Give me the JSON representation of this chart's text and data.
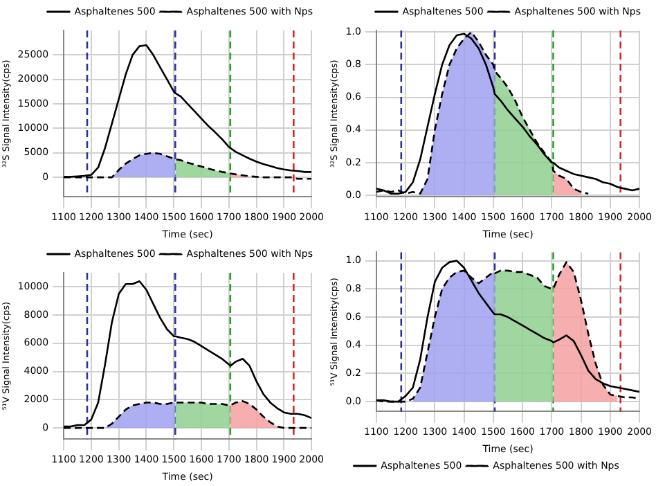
{
  "chart_data": [
    {
      "type": "line",
      "xlabel": "Time (sec)",
      "ylabel": "³²S Signal Intensity(cps)",
      "xlim": [
        1100,
        2000
      ],
      "xticks": [
        1100,
        1200,
        1300,
        1400,
        1500,
        1600,
        1700,
        1800,
        1900,
        2000
      ],
      "ylim": [
        -4000,
        30000
      ],
      "yticks": [
        0,
        5000,
        10000,
        15000,
        20000,
        25000
      ],
      "grid": true,
      "legend": "top right",
      "marker": "none",
      "x": [
        1100,
        1125,
        1150,
        1175,
        1200,
        1225,
        1250,
        1275,
        1300,
        1325,
        1350,
        1375,
        1400,
        1425,
        1450,
        1475,
        1500,
        1505,
        1525,
        1550,
        1575,
        1600,
        1625,
        1650,
        1675,
        1700,
        1705,
        1725,
        1750,
        1775,
        1800,
        1825,
        1850,
        1875,
        1900,
        1925,
        1950,
        1975,
        2000
      ],
      "series": [
        {
          "type": "area",
          "color": "#a0a0f0",
          "values": [
            null,
            null,
            null,
            null,
            null,
            null,
            null,
            0,
            1500,
            2800,
            3700,
            4500,
            4800,
            5000,
            4800,
            4300,
            3800,
            3700,
            null,
            null,
            null,
            null,
            null,
            null,
            null,
            null,
            null,
            null,
            null,
            null,
            null,
            null,
            null,
            null,
            null,
            null,
            null,
            null,
            null
          ]
        },
        {
          "type": "area",
          "color": "#8fd08f",
          "values": [
            null,
            null,
            null,
            null,
            null,
            null,
            null,
            null,
            null,
            null,
            null,
            null,
            null,
            null,
            null,
            null,
            null,
            3700,
            3500,
            3000,
            2600,
            2200,
            1800,
            1400,
            1100,
            900,
            800,
            null,
            null,
            null,
            null,
            null,
            null,
            null,
            null,
            null,
            null,
            null,
            null
          ]
        },
        {
          "type": "area",
          "color": "#f4a0a0",
          "values": [
            null,
            null,
            null,
            null,
            null,
            null,
            null,
            null,
            null,
            null,
            null,
            null,
            null,
            null,
            null,
            null,
            null,
            null,
            null,
            null,
            null,
            null,
            null,
            null,
            null,
            null,
            800,
            600,
            400,
            200,
            100,
            null,
            null,
            null,
            null,
            null,
            null,
            null,
            null
          ]
        },
        {
          "name": "Asphaltenes 500",
          "color": "#000000",
          "line_style": "solid",
          "values": [
            100,
            100,
            200,
            300,
            500,
            2000,
            6000,
            11000,
            16000,
            21000,
            25000,
            26800,
            27000,
            25000,
            22500,
            20000,
            17500,
            17200,
            16500,
            15000,
            13500,
            12000,
            10500,
            9200,
            7800,
            6200,
            6000,
            5200,
            4500,
            3800,
            3200,
            2700,
            2300,
            1900,
            1600,
            1400,
            1300,
            1100,
            1100
          ]
        },
        {
          "name": "Asphaltenes 500 with Nps",
          "color": "#000000",
          "line_style": "dashed",
          "values": [
            0,
            0,
            0,
            0,
            0,
            0,
            0,
            0,
            1500,
            2800,
            3700,
            4500,
            4800,
            5000,
            4800,
            4300,
            3800,
            3700,
            3500,
            3000,
            2600,
            2200,
            1800,
            1400,
            1100,
            900,
            800,
            600,
            400,
            200,
            100,
            0,
            0,
            0,
            0,
            0,
            -300,
            -300,
            -300
          ]
        }
      ],
      "ref_lines": [
        {
          "axis": "x",
          "value": 1185,
          "color": "#3030a0",
          "line_style": "dashed"
        },
        {
          "axis": "x",
          "value": 1505,
          "color": "#3030a0",
          "line_style": "dashed"
        },
        {
          "axis": "x",
          "value": 1705,
          "color": "#2ca02c",
          "line_style": "dashed"
        },
        {
          "axis": "x",
          "value": 1935,
          "color": "#d62728",
          "line_style": "dashed"
        }
      ]
    },
    {
      "type": "line",
      "xlabel": "Time (sec)",
      "ylabel": "³²S Signal Intensity(cps)",
      "xlim": [
        1100,
        2000
      ],
      "xticks": [
        1100,
        1200,
        1300,
        1400,
        1500,
        1600,
        1700,
        1800,
        1900,
        2000
      ],
      "ylim": [
        -0.01,
        1.01
      ],
      "yticks": [
        {
          "value": 0,
          "label": "0.0"
        },
        {
          "value": 0.2,
          "label": "0.2"
        },
        {
          "value": 0.4,
          "label": "0.4"
        },
        {
          "value": 0.6,
          "label": "0.6"
        },
        {
          "value": 0.8,
          "label": "0.8"
        },
        {
          "value": 1,
          "label": "1.0"
        }
      ],
      "grid": true,
      "legend": "top right",
      "marker": "none",
      "x": [
        1100,
        1125,
        1150,
        1175,
        1200,
        1225,
        1250,
        1275,
        1300,
        1325,
        1350,
        1375,
        1400,
        1425,
        1450,
        1475,
        1500,
        1505,
        1525,
        1550,
        1575,
        1600,
        1625,
        1650,
        1675,
        1700,
        1705,
        1725,
        1750,
        1775,
        1800,
        1825,
        1850,
        1875,
        1900,
        1925,
        1950,
        1975,
        2000
      ],
      "series": [
        {
          "type": "area",
          "color": "#a0a0f0",
          "values": [
            null,
            null,
            null,
            null,
            null,
            null,
            0.01,
            0.1,
            0.4,
            0.62,
            0.8,
            0.9,
            0.96,
            1.0,
            0.94,
            0.86,
            0.8,
            0.76,
            null,
            null,
            null,
            null,
            null,
            null,
            null,
            null,
            null,
            null,
            null,
            null,
            null,
            null,
            null,
            null,
            null,
            null,
            null,
            null,
            null
          ]
        },
        {
          "type": "area",
          "color": "#8fd08f",
          "values": [
            null,
            null,
            null,
            null,
            null,
            null,
            null,
            null,
            null,
            null,
            null,
            null,
            null,
            null,
            null,
            null,
            null,
            0.76,
            0.72,
            0.66,
            0.58,
            0.48,
            0.4,
            0.32,
            0.26,
            0.2,
            0.15,
            null,
            null,
            null,
            null,
            null,
            null,
            null,
            null,
            null,
            null,
            null,
            null
          ]
        },
        {
          "type": "area",
          "color": "#f4a0a0",
          "values": [
            null,
            null,
            null,
            null,
            null,
            null,
            null,
            null,
            null,
            null,
            null,
            null,
            null,
            null,
            null,
            null,
            null,
            null,
            null,
            null,
            null,
            null,
            null,
            null,
            null,
            null,
            0.15,
            0.12,
            0.1,
            0.04,
            0.02,
            null,
            null,
            null,
            null,
            null,
            null,
            null,
            null
          ]
        },
        {
          "name": "Asphaltenes 500",
          "color": "#000000",
          "line_style": "solid",
          "values": [
            0.02,
            0.03,
            0.01,
            0.01,
            0.02,
            0.08,
            0.22,
            0.42,
            0.62,
            0.8,
            0.92,
            0.98,
            0.99,
            0.96,
            0.9,
            0.8,
            0.66,
            0.62,
            0.58,
            0.52,
            0.47,
            0.42,
            0.36,
            0.31,
            0.25,
            0.2,
            0.2,
            0.17,
            0.15,
            0.13,
            0.12,
            0.11,
            0.1,
            0.08,
            0.07,
            0.05,
            0.04,
            0.03,
            0.04
          ]
        },
        {
          "name": "Asphaltenes 500 with Nps",
          "color": "#000000",
          "line_style": "dashed",
          "values": [
            0.04,
            0.03,
            0.02,
            0.03,
            0.01,
            0.02,
            0.01,
            0.1,
            0.4,
            0.62,
            0.8,
            0.9,
            0.96,
            1.0,
            0.94,
            0.86,
            0.8,
            0.76,
            0.72,
            0.66,
            0.58,
            0.48,
            0.4,
            0.32,
            0.26,
            0.2,
            0.15,
            0.12,
            0.1,
            0.04,
            0.02,
            0.01,
            null,
            null,
            null,
            null,
            null,
            null,
            null
          ]
        }
      ],
      "ref_lines": [
        {
          "axis": "x",
          "value": 1185,
          "color": "#3030a0",
          "line_style": "dashed"
        },
        {
          "axis": "x",
          "value": 1505,
          "color": "#3030a0",
          "line_style": "dashed"
        },
        {
          "axis": "x",
          "value": 1705,
          "color": "#2ca02c",
          "line_style": "dashed"
        },
        {
          "axis": "x",
          "value": 1935,
          "color": "#d62728",
          "line_style": "dashed"
        }
      ]
    },
    {
      "type": "line",
      "xlabel": "Time (sec)",
      "ylabel": "⁵¹V Signal Intensity(cps)",
      "xlim": [
        1100,
        2000
      ],
      "xticks": [
        1100,
        1200,
        1300,
        1400,
        1500,
        1600,
        1700,
        1800,
        1900,
        2000
      ],
      "ylim": [
        -800,
        11000
      ],
      "yticks": [
        0,
        2000,
        4000,
        6000,
        8000,
        10000
      ],
      "grid": true,
      "legend": "top right",
      "marker": "none",
      "x": [
        1100,
        1125,
        1150,
        1175,
        1200,
        1225,
        1250,
        1275,
        1300,
        1325,
        1350,
        1375,
        1400,
        1425,
        1450,
        1475,
        1500,
        1505,
        1525,
        1550,
        1575,
        1600,
        1625,
        1650,
        1675,
        1700,
        1705,
        1725,
        1750,
        1775,
        1800,
        1825,
        1850,
        1875,
        1900,
        1925,
        1950,
        1975,
        2000
      ],
      "series": [
        {
          "type": "area",
          "color": "#a0a0f0",
          "values": [
            null,
            null,
            null,
            null,
            null,
            null,
            0,
            300,
            800,
            1300,
            1600,
            1700,
            1800,
            1800,
            1700,
            1700,
            1800,
            1800,
            null,
            null,
            null,
            null,
            null,
            null,
            null,
            null,
            null,
            null,
            null,
            null,
            null,
            null,
            null,
            null,
            null,
            null,
            null,
            null,
            null
          ]
        },
        {
          "type": "area",
          "color": "#8fd08f",
          "values": [
            null,
            null,
            null,
            null,
            null,
            null,
            null,
            null,
            null,
            null,
            null,
            null,
            null,
            null,
            null,
            null,
            null,
            1800,
            1800,
            1800,
            1800,
            1800,
            1700,
            1700,
            1700,
            1600,
            1600,
            null,
            null,
            null,
            null,
            null,
            null,
            null,
            null,
            null,
            null,
            null,
            null
          ]
        },
        {
          "type": "area",
          "color": "#f4a0a0",
          "values": [
            null,
            null,
            null,
            null,
            null,
            null,
            null,
            null,
            null,
            null,
            null,
            null,
            null,
            null,
            null,
            null,
            null,
            null,
            null,
            null,
            null,
            null,
            null,
            null,
            null,
            null,
            1600,
            1800,
            1900,
            1700,
            1300,
            800,
            400,
            100,
            null,
            null,
            null,
            null,
            null
          ]
        },
        {
          "name": "Asphaltenes 500",
          "color": "#000000",
          "line_style": "solid",
          "values": [
            100,
            100,
            200,
            200,
            600,
            1800,
            4500,
            7500,
            9500,
            10200,
            10200,
            10400,
            9800,
            8800,
            7800,
            7000,
            6500,
            6500,
            6400,
            6300,
            6100,
            5800,
            5500,
            5200,
            4900,
            4500,
            4400,
            4700,
            4900,
            4400,
            3300,
            2400,
            1800,
            1400,
            1100,
            1000,
            1000,
            900,
            700
          ]
        },
        {
          "name": "Asphaltenes 500 with Nps",
          "color": "#000000",
          "line_style": "dashed",
          "values": [
            0,
            0,
            0,
            0,
            0,
            0,
            0,
            300,
            800,
            1300,
            1600,
            1700,
            1800,
            1800,
            1700,
            1700,
            1800,
            1800,
            1800,
            1800,
            1800,
            1800,
            1700,
            1700,
            1700,
            1600,
            1600,
            1800,
            1900,
            1700,
            1300,
            800,
            400,
            100,
            0,
            0,
            0,
            0,
            0
          ]
        }
      ],
      "ref_lines": [
        {
          "axis": "x",
          "value": 1185,
          "color": "#3030a0",
          "line_style": "dashed"
        },
        {
          "axis": "x",
          "value": 1505,
          "color": "#3030a0",
          "line_style": "dashed"
        },
        {
          "axis": "x",
          "value": 1705,
          "color": "#2ca02c",
          "line_style": "dashed"
        },
        {
          "axis": "x",
          "value": 1935,
          "color": "#d62728",
          "line_style": "dashed"
        }
      ]
    },
    {
      "type": "line",
      "xlabel": "Time (sec)",
      "ylabel": "⁵¹V Signal Intensity(cps)",
      "xlim": [
        1100,
        2000
      ],
      "xticks": [
        1100,
        1200,
        1300,
        1400,
        1500,
        1600,
        1700,
        1800,
        1900,
        2000
      ],
      "ylim": [
        -0.07,
        1.06
      ],
      "yticks": [
        {
          "value": 0,
          "label": "0.0"
        },
        {
          "value": 0.2,
          "label": "0.2"
        },
        {
          "value": 0.4,
          "label": "0.4"
        },
        {
          "value": 0.6,
          "label": "0.6"
        },
        {
          "value": 0.8,
          "label": "0.8"
        },
        {
          "value": 1,
          "label": "1.0"
        }
      ],
      "grid": true,
      "legend": "bottom",
      "marker": "none",
      "x": [
        1100,
        1125,
        1150,
        1175,
        1200,
        1225,
        1250,
        1275,
        1300,
        1325,
        1350,
        1375,
        1400,
        1425,
        1450,
        1475,
        1500,
        1505,
        1525,
        1550,
        1575,
        1600,
        1625,
        1650,
        1675,
        1700,
        1705,
        1725,
        1750,
        1775,
        1800,
        1825,
        1850,
        1875,
        1900,
        1925,
        1950,
        1975,
        2000
      ],
      "series": [
        {
          "type": "area",
          "color": "#a0a0f0",
          "values": [
            null,
            null,
            null,
            null,
            null,
            0.02,
            0.1,
            0.35,
            0.6,
            0.8,
            0.88,
            0.92,
            0.93,
            0.88,
            0.84,
            0.88,
            0.92,
            0.91,
            null,
            null,
            null,
            null,
            null,
            null,
            null,
            null,
            null,
            null,
            null,
            null,
            null,
            null,
            null,
            null,
            null,
            null,
            null,
            null,
            null
          ]
        },
        {
          "type": "area",
          "color": "#8fd08f",
          "values": [
            null,
            null,
            null,
            null,
            null,
            null,
            null,
            null,
            null,
            null,
            null,
            null,
            null,
            null,
            null,
            null,
            null,
            0.91,
            0.93,
            0.93,
            0.92,
            0.92,
            0.9,
            0.88,
            0.82,
            0.8,
            0.8,
            null,
            null,
            null,
            null,
            null,
            null,
            null,
            null,
            null,
            null,
            null,
            null
          ]
        },
        {
          "type": "area",
          "color": "#f4a0a0",
          "values": [
            null,
            null,
            null,
            null,
            null,
            null,
            null,
            null,
            null,
            null,
            null,
            null,
            null,
            null,
            null,
            null,
            null,
            null,
            null,
            null,
            null,
            null,
            null,
            null,
            null,
            null,
            0.8,
            0.9,
            0.99,
            0.92,
            0.72,
            0.48,
            0.27,
            0.12,
            0.05,
            0.04,
            null,
            null,
            null
          ]
        },
        {
          "name": "Asphaltenes 500",
          "color": "#000000",
          "line_style": "solid",
          "values": [
            0.01,
            0.01,
            0.0,
            0.0,
            0.04,
            0.1,
            0.3,
            0.6,
            0.85,
            0.95,
            0.99,
            1.0,
            0.95,
            0.86,
            0.77,
            0.7,
            0.63,
            0.62,
            0.62,
            0.6,
            0.57,
            0.54,
            0.51,
            0.48,
            0.45,
            0.43,
            0.42,
            0.44,
            0.47,
            0.43,
            0.33,
            0.22,
            0.16,
            0.13,
            0.11,
            0.1,
            0.09,
            0.08,
            0.07
          ]
        },
        {
          "name": "Asphaltenes 500 with Nps",
          "color": "#000000",
          "line_style": "dashed",
          "values": [
            0.01,
            0.0,
            0.0,
            0.0,
            0.0,
            0.02,
            0.1,
            0.35,
            0.6,
            0.8,
            0.88,
            0.92,
            0.93,
            0.88,
            0.84,
            0.88,
            0.92,
            0.91,
            0.93,
            0.93,
            0.92,
            0.92,
            0.9,
            0.88,
            0.82,
            0.8,
            0.8,
            0.9,
            0.99,
            0.92,
            0.72,
            0.48,
            0.27,
            0.12,
            0.05,
            0.04,
            0.03,
            0.03,
            0.02
          ]
        }
      ],
      "ref_lines": [
        {
          "axis": "x",
          "value": 1185,
          "color": "#3030a0",
          "line_style": "dashed"
        },
        {
          "axis": "x",
          "value": 1505,
          "color": "#3030a0",
          "line_style": "dashed"
        },
        {
          "axis": "x",
          "value": 1705,
          "color": "#2ca02c",
          "line_style": "dashed"
        },
        {
          "axis": "x",
          "value": 1935,
          "color": "#d62728",
          "line_style": "dashed"
        }
      ]
    }
  ]
}
